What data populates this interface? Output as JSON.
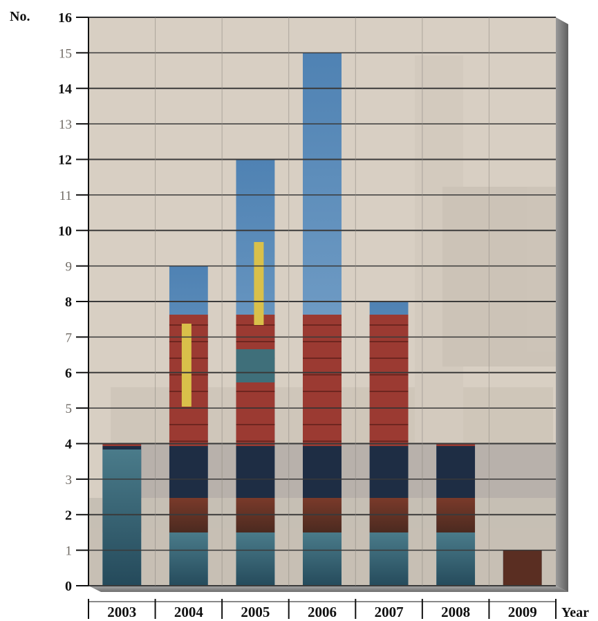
{
  "chart_data": {
    "type": "bar",
    "categories": [
      "2003",
      "2004",
      "2005",
      "2006",
      "2007",
      "2008",
      "2009"
    ],
    "values": [
      4,
      9,
      12,
      15,
      8,
      4,
      1
    ],
    "ylabel": "No.",
    "xlabel": "Year",
    "ylim": [
      0,
      16
    ],
    "yticks": [
      0,
      1,
      2,
      3,
      4,
      5,
      6,
      7,
      8,
      9,
      10,
      11,
      12,
      13,
      14,
      15,
      16
    ],
    "grid": true,
    "legend": "none"
  },
  "colors": {
    "background_panel": "#d7cdc1",
    "bar_sky": "#5b8ab8",
    "bar_sky_top": "#6f9cc8",
    "hull": "#1e2d44",
    "container_red": "#9b3a32",
    "crane_yellow": "#d9c04a",
    "water": "#3f6d7e",
    "gridline": "#3a3a3a",
    "side_wall": "#7b7b7b"
  }
}
